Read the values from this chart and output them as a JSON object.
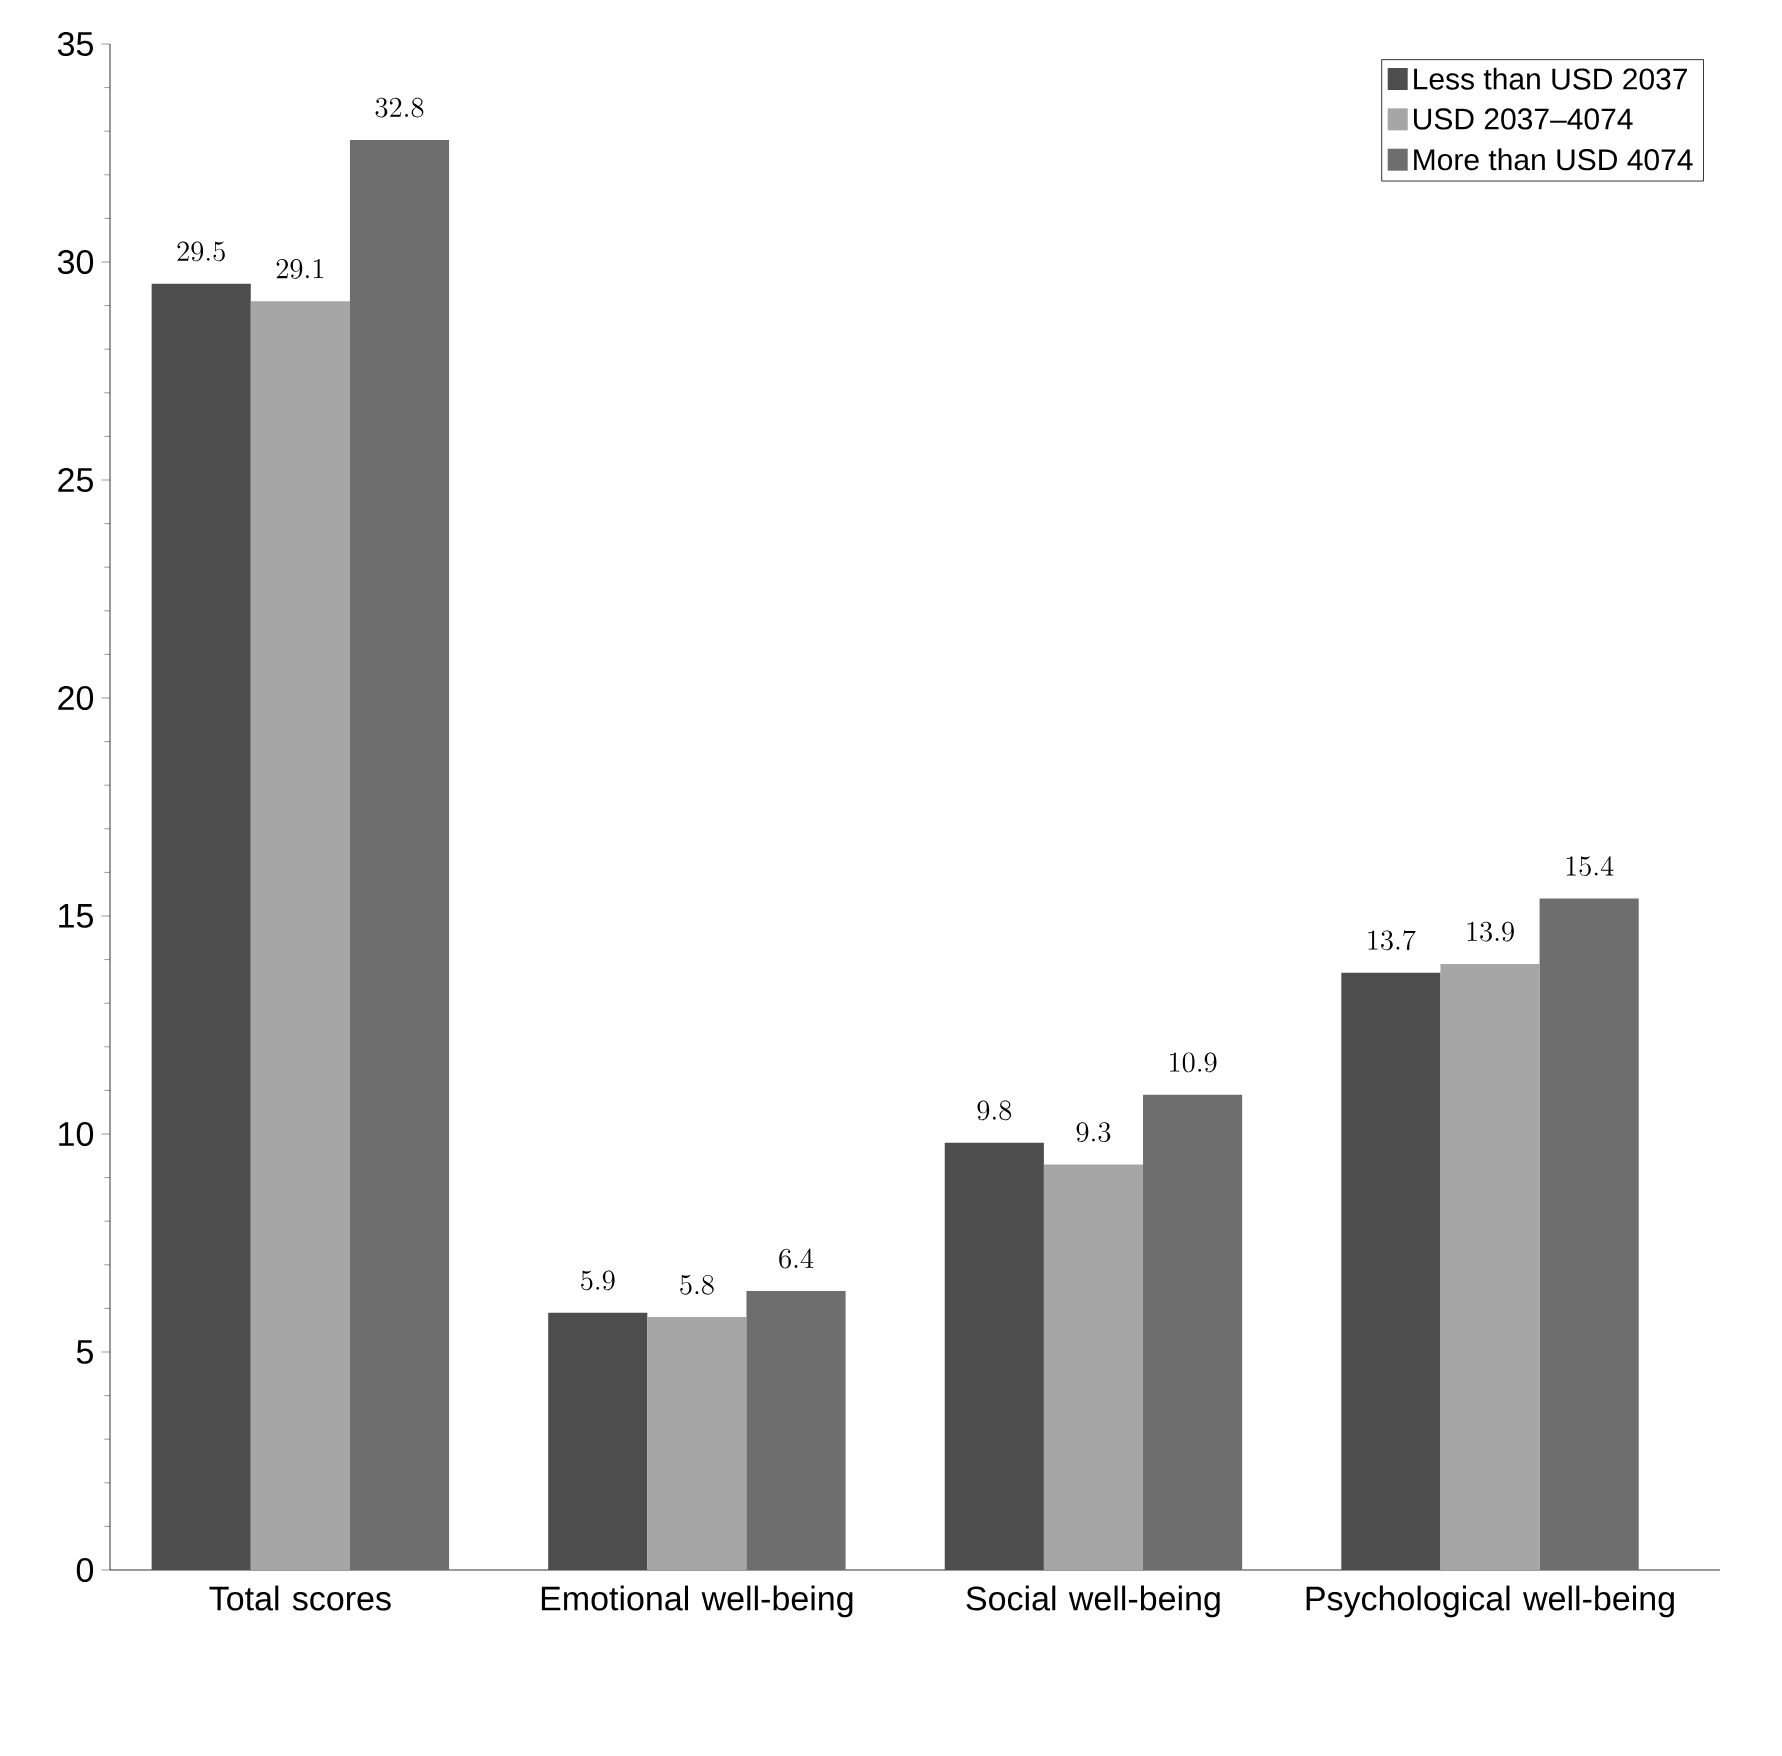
{
  "chart_data": {
    "type": "bar",
    "categories": [
      "Total scores",
      "Emotional well-being",
      "Social well-being",
      "Psychological well-being"
    ],
    "series": [
      {
        "name": "Less than USD 2037",
        "color": "#4d4d4d",
        "values": [
          29.5,
          5.9,
          9.8,
          13.7
        ]
      },
      {
        "name": "USD 2037–4074",
        "color": "#a6a6a6",
        "values": [
          29.1,
          5.8,
          9.3,
          13.9
        ]
      },
      {
        "name": "More than USD 4074",
        "color": "#6e6e6e",
        "values": [
          32.8,
          6.4,
          10.9,
          15.4
        ]
      }
    ],
    "ylim": [
      0,
      35
    ],
    "yticks": [
      0,
      5,
      10,
      15,
      20,
      25,
      30,
      35
    ],
    "data_labels": true,
    "legend": "top right",
    "grid": false
  }
}
